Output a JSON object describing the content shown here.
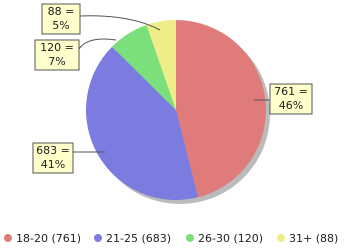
{
  "chart_data": {
    "type": "pie",
    "categories": [
      "18-20 (761)",
      "21-25 (683)",
      "26-30 (120)",
      "31+ (88)"
    ],
    "values": [
      761,
      683,
      120,
      88
    ],
    "value_labels": [
      [
        "761 =",
        "46%"
      ],
      [
        "683 =",
        "41%"
      ],
      [
        "120 =",
        "7%"
      ],
      [
        "88 =",
        "5%"
      ]
    ],
    "colors": [
      "#e07b7b",
      "#7b7be0",
      "#7be07b",
      "#eeee88"
    ],
    "start_angle": 0,
    "direction": "clockwise"
  }
}
